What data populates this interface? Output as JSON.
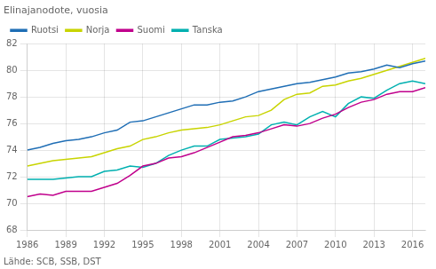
{
  "chart_data": {
    "type": "line",
    "ylabel": "Elinajanodote, vuosia",
    "annotations": [
      "Lähde: SCB, SSB, DST"
    ],
    "x": [
      1986,
      1987,
      1988,
      1989,
      1990,
      1991,
      1992,
      1993,
      1994,
      1995,
      1996,
      1997,
      1998,
      1999,
      2000,
      2001,
      2002,
      2003,
      2004,
      2005,
      2006,
      2007,
      2008,
      2009,
      2010,
      2011,
      2012,
      2013,
      2014,
      2015,
      2016,
      2017
    ],
    "series": [
      {
        "name": "Ruotsi",
        "color": "#1f6eb5",
        "values": [
          74.0,
          74.2,
          74.5,
          74.7,
          74.8,
          75.0,
          75.3,
          75.5,
          76.1,
          76.2,
          76.5,
          76.8,
          77.1,
          77.4,
          77.4,
          77.6,
          77.7,
          78.0,
          78.4,
          78.6,
          78.8,
          79.0,
          79.1,
          79.3,
          79.5,
          79.8,
          79.9,
          80.1,
          80.4,
          80.2,
          80.5,
          80.7
        ]
      },
      {
        "name": "Norja",
        "color": "#c8d400",
        "values": [
          72.8,
          73.0,
          73.2,
          73.3,
          73.4,
          73.5,
          73.8,
          74.1,
          74.3,
          74.8,
          75.0,
          75.3,
          75.5,
          75.6,
          75.7,
          75.9,
          76.2,
          76.5,
          76.6,
          77.0,
          77.8,
          78.2,
          78.3,
          78.8,
          78.9,
          79.2,
          79.4,
          79.7,
          80.0,
          80.3,
          80.6,
          80.9
        ]
      },
      {
        "name": "Suomi",
        "color": "#c0008c",
        "values": [
          70.5,
          70.7,
          70.6,
          70.9,
          70.9,
          70.9,
          71.2,
          71.5,
          72.1,
          72.8,
          73.0,
          73.4,
          73.5,
          73.8,
          74.2,
          74.6,
          75.0,
          75.1,
          75.3,
          75.6,
          75.9,
          75.8,
          76.0,
          76.4,
          76.7,
          77.2,
          77.6,
          77.8,
          78.2,
          78.4,
          78.4,
          78.7
        ]
      },
      {
        "name": "Tanska",
        "color": "#00b0b0",
        "values": [
          71.8,
          71.8,
          71.8,
          71.9,
          72.0,
          72.0,
          72.4,
          72.5,
          72.8,
          72.7,
          73.0,
          73.6,
          74.0,
          74.3,
          74.3,
          74.8,
          74.9,
          75.0,
          75.2,
          75.9,
          76.1,
          75.9,
          76.5,
          76.9,
          76.5,
          77.5,
          78.0,
          77.9,
          78.5,
          79.0,
          79.2,
          79.0
        ]
      }
    ],
    "xlim": [
      1986,
      2017
    ],
    "xticks": [
      1986,
      1989,
      1992,
      1995,
      1998,
      2001,
      2004,
      2007,
      2010,
      2013,
      2016
    ],
    "ylim": [
      68,
      82
    ],
    "yticks": [
      68,
      70,
      72,
      74,
      76,
      78,
      80,
      82
    ],
    "grid": true,
    "legend": "upper left"
  }
}
